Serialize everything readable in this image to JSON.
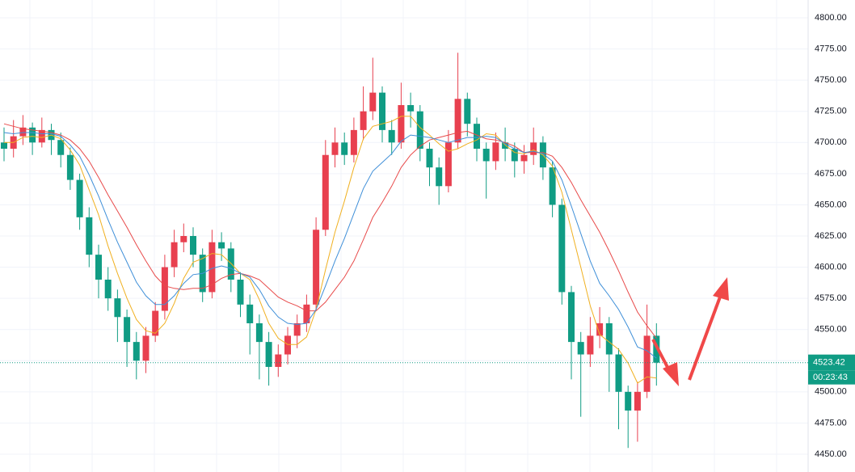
{
  "chart_data": {
    "type": "candlestick",
    "up_color": "#e8404f",
    "down_color": "#109c84",
    "ylim": [
      4435.7,
      4814.3
    ],
    "yticks": [
      {
        "value": 4450,
        "label": "4450.00"
      },
      {
        "value": 4475,
        "label": "4475.00"
      },
      {
        "value": 4500,
        "label": "4500.00"
      },
      {
        "value": 4525,
        "label": "4525.00"
      },
      {
        "value": 4550,
        "label": "4550.00"
      },
      {
        "value": 4575,
        "label": "4575.00"
      },
      {
        "value": 4600,
        "label": "4600.00"
      },
      {
        "value": 4625,
        "label": "4625.00"
      },
      {
        "value": 4650,
        "label": "4650.00"
      },
      {
        "value": 4675,
        "label": "4675.00"
      },
      {
        "value": 4700,
        "label": "4700.00"
      },
      {
        "value": 4725,
        "label": "4725.00"
      },
      {
        "value": 4750,
        "label": "4750.00"
      },
      {
        "value": 4775,
        "label": "4775.00"
      },
      {
        "value": 4800,
        "label": "4800.00"
      }
    ],
    "grid": true,
    "open": [
      4700,
      4695,
      4705,
      4712,
      4700,
      4710,
      4702,
      4690,
      4670,
      4640,
      4610,
      4590,
      4575,
      4560,
      4540,
      4525,
      4545,
      4565,
      4600,
      4620,
      4625,
      4610,
      4580,
      4620,
      4615,
      4590,
      4570,
      4555,
      4540,
      4520,
      4530,
      4545,
      4555,
      4570,
      4630,
      4690,
      4700,
      4690,
      4710,
      4725,
      4740,
      4710,
      4700,
      4730,
      4725,
      4695,
      4680,
      4665,
      4700,
      4735,
      4715,
      4695,
      4685,
      4700,
      4695,
      4685,
      4690,
      4700,
      4680,
      4650,
      4580,
      4540,
      4530,
      4545,
      4555,
      4530,
      4500,
      4485,
      4500,
      4545
    ],
    "high": [
      4712,
      4718,
      4722,
      4716,
      4720,
      4715,
      4708,
      4696,
      4675,
      4648,
      4618,
      4600,
      4582,
      4566,
      4548,
      4552,
      4572,
      4610,
      4630,
      4635,
      4632,
      4615,
      4630,
      4628,
      4620,
      4596,
      4578,
      4562,
      4548,
      4538,
      4552,
      4562,
      4578,
      4640,
      4702,
      4712,
      4708,
      4720,
      4745,
      4768,
      4745,
      4718,
      4748,
      4740,
      4730,
      4700,
      4688,
      4710,
      4772,
      4740,
      4720,
      4700,
      4708,
      4712,
      4700,
      4698,
      4712,
      4705,
      4685,
      4655,
      4585,
      4548,
      4560,
      4568,
      4560,
      4535,
      4505,
      4508,
      4570,
      4555
    ],
    "low": [
      4685,
      4688,
      4698,
      4690,
      4696,
      4690,
      4680,
      4662,
      4630,
      4600,
      4575,
      4565,
      4540,
      4520,
      4510,
      4515,
      4540,
      4558,
      4592,
      4612,
      4600,
      4572,
      4575,
      4605,
      4580,
      4560,
      4530,
      4510,
      4505,
      4512,
      4522,
      4535,
      4548,
      4565,
      4625,
      4680,
      4682,
      4684,
      4702,
      4718,
      4700,
      4690,
      4695,
      4712,
      4685,
      4665,
      4650,
      4660,
      4695,
      4705,
      4685,
      4655,
      4678,
      4685,
      4672,
      4675,
      4682,
      4670,
      4640,
      4570,
      4510,
      4480,
      4520,
      4535,
      4500,
      4470,
      4455,
      4460,
      4495,
      4505
    ],
    "close": [
      4695,
      4705,
      4712,
      4700,
      4710,
      4702,
      4690,
      4670,
      4640,
      4610,
      4590,
      4575,
      4560,
      4540,
      4525,
      4545,
      4565,
      4600,
      4620,
      4625,
      4610,
      4580,
      4620,
      4615,
      4590,
      4570,
      4555,
      4540,
      4520,
      4530,
      4545,
      4555,
      4570,
      4630,
      4690,
      4700,
      4690,
      4710,
      4725,
      4740,
      4710,
      4700,
      4730,
      4725,
      4695,
      4680,
      4665,
      4700,
      4735,
      4715,
      4695,
      4685,
      4700,
      4695,
      4685,
      4690,
      4700,
      4680,
      4650,
      4580,
      4540,
      4530,
      4545,
      4555,
      4530,
      4500,
      4485,
      4500,
      4545,
      4523.42
    ],
    "series": [
      {
        "color": "#f0b020",
        "values": [
          4700,
          4700,
          4704,
          4705,
          4704,
          4706,
          4703,
          4694,
          4682,
          4662,
          4642,
          4617,
          4595,
          4575,
          4558,
          4549,
          4547,
          4555,
          4571,
          4591,
          4604,
          4607,
          4611,
          4610,
          4603,
          4595,
          4590,
          4574,
          4555,
          4543,
          4538,
          4538,
          4544,
          4566,
          4598,
          4628,
          4653,
          4680,
          4703,
          4713,
          4715,
          4717,
          4721,
          4721,
          4712,
          4706,
          4699,
          4693,
          4695,
          4699,
          4702,
          4707,
          4706,
          4698,
          4692,
          4691,
          4694,
          4690,
          4681,
          4660,
          4630,
          4600,
          4569,
          4546,
          4540,
          4534,
          4523,
          4507,
          4512,
          4511
        ]
      },
      {
        "color": "#e84a4a",
        "values": [
          4715,
          4713,
          4711,
          4710,
          4709,
          4708,
          4706,
          4702,
          4695,
          4685,
          4672,
          4658,
          4645,
          4632,
          4618,
          4605,
          4593,
          4585,
          4583,
          4582,
          4583,
          4583,
          4586,
          4591,
          4594,
          4595,
          4593,
          4590,
          4583,
          4576,
          4572,
          4569,
          4565,
          4565,
          4572,
          4582,
          4592,
          4605,
          4622,
          4640,
          4652,
          4665,
          4680,
          4690,
          4697,
          4702,
          4704,
          4706,
          4708,
          4709,
          4706,
          4703,
          4702,
          4700,
          4697,
          4692,
          4692,
          4692,
          4689,
          4680,
          4668,
          4654,
          4641,
          4628,
          4613,
          4597,
          4580,
          4564,
          4553,
          4543
        ]
      },
      {
        "color": "#3f8fd8",
        "values": [
          4708,
          4707,
          4708,
          4708,
          4707,
          4707,
          4705,
          4698,
          4689,
          4674,
          4657,
          4638,
          4620,
          4604,
          4588,
          4577,
          4570,
          4570,
          4577,
          4587,
          4594,
          4595,
          4599,
          4601,
          4599,
          4595,
          4592,
          4582,
          4569,
          4560,
          4555,
          4554,
          4555,
          4566,
          4585,
          4605,
          4623,
          4643,
          4663,
          4677,
          4684,
          4691,
          4701,
          4706,
          4705,
          4704,
          4702,
          4700,
          4702,
          4704,
          4704,
          4705,
          4704,
          4699,
          4695,
          4692,
          4693,
          4691,
          4685,
          4670,
          4649,
          4627,
          4605,
          4587,
          4577,
          4566,
          4552,
          4536,
          4533,
          4527
        ]
      }
    ],
    "countdown": "00:23:43"
  }
}
